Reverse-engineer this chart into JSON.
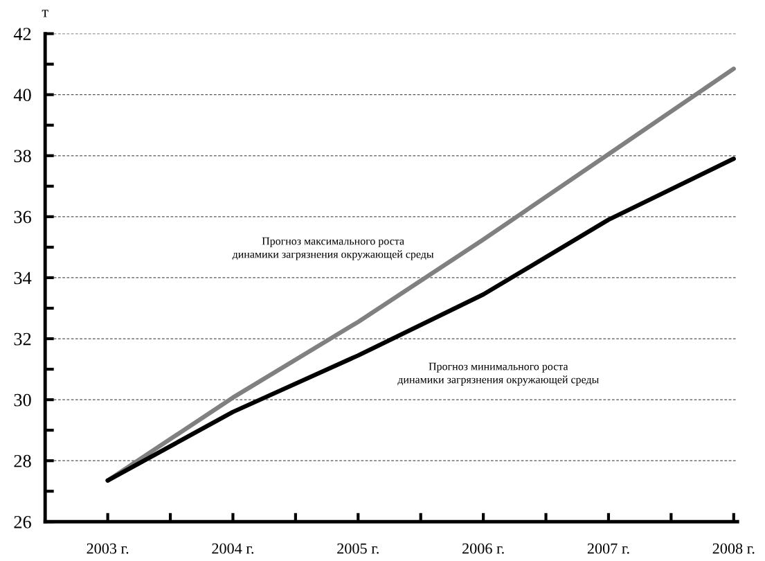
{
  "chart_data": {
    "type": "line",
    "ylabel": "т",
    "categories": [
      "2003 г.",
      "2004 г.",
      "2005 г.",
      "2006 г.",
      "2007 г.",
      "2008 г."
    ],
    "series": [
      {
        "name": "Прогноз максимального роста\nдинамики загрязнения окружающей среды",
        "color": "#808080",
        "values": [
          27.35,
          30.07,
          32.55,
          35.25,
          38.05,
          40.85
        ]
      },
      {
        "name": "Прогноз минимального роста\nдинамики загрязнения окружающей среды",
        "color": "#000000",
        "values": [
          27.35,
          29.6,
          31.45,
          33.45,
          35.9,
          37.9
        ]
      }
    ],
    "ylim": [
      26,
      42
    ],
    "yticks": [
      26,
      {
        "value": 27,
        "label": null
      },
      28,
      {
        "value": 29,
        "label": null
      },
      30,
      {
        "value": 31,
        "label": null
      },
      32,
      {
        "value": 33,
        "label": null
      },
      34,
      {
        "value": 35,
        "label": null
      },
      36,
      {
        "value": 37,
        "label": null
      },
      38,
      {
        "value": 39,
        "label": null
      },
      40,
      {
        "value": 41,
        "label": null
      },
      42
    ],
    "grid": "y",
    "marker": "none",
    "line_style": "solid",
    "legend": false
  }
}
